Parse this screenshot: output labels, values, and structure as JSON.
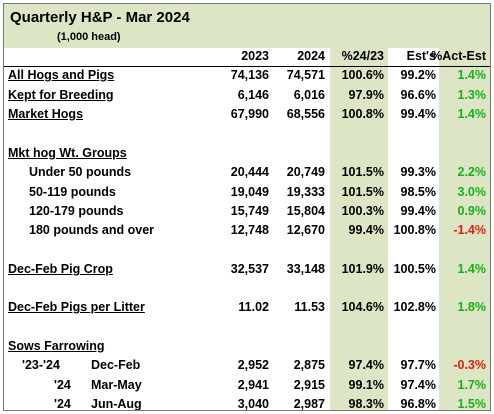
{
  "title": "Quarterly H&P - Mar 2024",
  "subtitle": "(1,000 head)",
  "columns": [
    "2023",
    "2024",
    "%24/23",
    "Est's",
    "%Act-Est"
  ],
  "colors": {
    "highlight": "#dce6c5",
    "positive": "#17b117",
    "negative": "#e0200f"
  },
  "rows": [
    {
      "label": "All Hogs and Pigs",
      "c1": "74,136",
      "c2": "74,571",
      "c3": "100.6%",
      "c4": "99.2%",
      "c5": "1.4%",
      "c5_sign": "pos"
    },
    {
      "label": "Kept for Breeding",
      "c1": "6,146",
      "c2": "6,016",
      "c3": "97.9%",
      "c4": "96.6%",
      "c5": "1.3%",
      "c5_sign": "pos"
    },
    {
      "label": "Market Hogs",
      "c1": "67,990",
      "c2": "68,556",
      "c3": "100.8%",
      "c4": "99.4%",
      "c5": "1.4%",
      "c5_sign": "pos"
    },
    {
      "label": "Mkt hog Wt. Groups"
    },
    {
      "label": "Under 50 pounds",
      "c1": "20,444",
      "c2": "20,749",
      "c3": "101.5%",
      "c4": "99.3%",
      "c5": "2.2%",
      "c5_sign": "pos"
    },
    {
      "label": "50-119 pounds",
      "c1": "19,049",
      "c2": "19,333",
      "c3": "101.5%",
      "c4": "98.5%",
      "c5": "3.0%",
      "c5_sign": "pos"
    },
    {
      "label": "120-179 pounds",
      "c1": "15,749",
      "c2": "15,804",
      "c3": "100.3%",
      "c4": "99.4%",
      "c5": "0.9%",
      "c5_sign": "pos"
    },
    {
      "label": "180 pounds and over",
      "c1": "12,748",
      "c2": "12,670",
      "c3": "99.4%",
      "c4": "100.8%",
      "c5": "-1.4%",
      "c5_sign": "neg"
    },
    {
      "label": "Dec-Feb Pig Crop",
      "c1": "32,537",
      "c2": "33,148",
      "c3": "101.9%",
      "c4": "100.5%",
      "c5": "1.4%",
      "c5_sign": "pos"
    },
    {
      "label": "Dec-Feb Pigs per Litter",
      "c1": "11.02",
      "c2": "11.53",
      "c3": "104.6%",
      "c4": "102.8%",
      "c5": "1.8%",
      "c5_sign": "pos"
    },
    {
      "label": "Sows Farrowing"
    },
    {
      "label": "'23-'24",
      "label2": "Dec-Feb",
      "c1": "2,952",
      "c2": "2,875",
      "c3": "97.4%",
      "c4": "97.7%",
      "c5": "-0.3%",
      "c5_sign": "neg"
    },
    {
      "label": "'24",
      "label2": "Mar-May",
      "c1": "2,941",
      "c2": "2,915",
      "c3": "99.1%",
      "c4": "97.4%",
      "c5": "1.7%",
      "c5_sign": "pos"
    },
    {
      "label": "'24",
      "label2": "Jun-Aug",
      "c1": "3,040",
      "c2": "2,987",
      "c3": "98.3%",
      "c4": "96.8%",
      "c5": "1.5%",
      "c5_sign": "pos"
    }
  ]
}
